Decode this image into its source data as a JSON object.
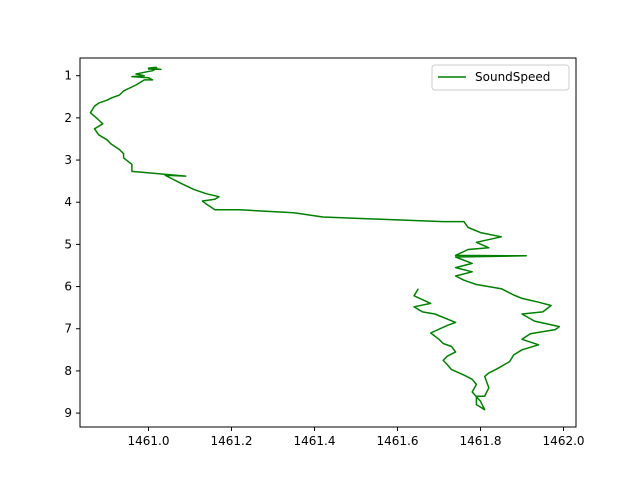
{
  "chart_data": {
    "type": "line",
    "title": "",
    "xlabel": "",
    "ylabel": "",
    "xlim": [
      1460.835,
      1462.03
    ],
    "ylim": [
      9.33,
      0.58
    ],
    "y_inverted": true,
    "xticks": [
      1461.0,
      1461.2,
      1461.4,
      1461.6,
      1461.8,
      1462.0
    ],
    "xtick_labels": [
      "1461.0",
      "1461.2",
      "1461.4",
      "1461.6",
      "1461.8",
      "1462.0"
    ],
    "yticks": [
      1,
      2,
      3,
      4,
      5,
      6,
      7,
      8,
      9
    ],
    "ytick_labels": [
      "1",
      "2",
      "3",
      "4",
      "5",
      "6",
      "7",
      "8",
      "9"
    ],
    "grid": false,
    "legend": {
      "position": "top-right",
      "entries": [
        "SoundSpeed"
      ]
    },
    "series": [
      {
        "name": "SoundSpeed",
        "color": "#008000",
        "points": [
          [
            1461.02,
            0.8
          ],
          [
            1461.0,
            0.82
          ],
          [
            1461.03,
            0.85
          ],
          [
            1461.0,
            0.84
          ],
          [
            1461.02,
            0.82
          ],
          [
            1461.01,
            0.88
          ],
          [
            1460.99,
            0.92
          ],
          [
            1460.97,
            0.96
          ],
          [
            1460.99,
            1.0
          ],
          [
            1460.96,
            1.02
          ],
          [
            1461.0,
            1.05
          ],
          [
            1461.01,
            1.1
          ],
          [
            1460.99,
            1.1
          ],
          [
            1460.97,
            1.22
          ],
          [
            1460.94,
            1.36
          ],
          [
            1460.93,
            1.46
          ],
          [
            1460.91,
            1.53
          ],
          [
            1460.9,
            1.58
          ],
          [
            1460.88,
            1.65
          ],
          [
            1460.87,
            1.72
          ],
          [
            1460.86,
            1.88
          ],
          [
            1460.87,
            1.96
          ],
          [
            1460.88,
            2.05
          ],
          [
            1460.89,
            2.14
          ],
          [
            1460.87,
            2.26
          ],
          [
            1460.88,
            2.4
          ],
          [
            1460.9,
            2.52
          ],
          [
            1460.91,
            2.62
          ],
          [
            1460.93,
            2.75
          ],
          [
            1460.94,
            2.85
          ],
          [
            1460.94,
            2.95
          ],
          [
            1460.96,
            3.1
          ],
          [
            1460.96,
            3.27
          ],
          [
            1461.09,
            3.38
          ],
          [
            1461.04,
            3.36
          ],
          [
            1461.06,
            3.46
          ],
          [
            1461.08,
            3.56
          ],
          [
            1461.11,
            3.7
          ],
          [
            1461.14,
            3.8
          ],
          [
            1461.17,
            3.87
          ],
          [
            1461.16,
            3.93
          ],
          [
            1461.13,
            3.97
          ],
          [
            1461.14,
            4.05
          ],
          [
            1461.16,
            4.18
          ],
          [
            1461.22,
            4.18
          ],
          [
            1461.35,
            4.25
          ],
          [
            1461.42,
            4.35
          ],
          [
            1461.55,
            4.4
          ],
          [
            1461.71,
            4.46
          ],
          [
            1461.76,
            4.46
          ],
          [
            1461.77,
            4.6
          ],
          [
            1461.8,
            4.72
          ],
          [
            1461.85,
            4.82
          ],
          [
            1461.79,
            4.95
          ],
          [
            1461.82,
            5.08
          ],
          [
            1461.77,
            5.12
          ],
          [
            1461.74,
            5.26
          ],
          [
            1461.91,
            5.27
          ],
          [
            1461.74,
            5.3
          ],
          [
            1461.78,
            5.45
          ],
          [
            1461.74,
            5.55
          ],
          [
            1461.78,
            5.65
          ],
          [
            1461.74,
            5.75
          ],
          [
            1461.76,
            5.85
          ],
          [
            1461.79,
            5.95
          ],
          [
            1461.82,
            6.0
          ],
          [
            1461.85,
            6.05
          ],
          [
            1461.88,
            6.2
          ],
          [
            1461.9,
            6.28
          ],
          [
            1461.94,
            6.37
          ],
          [
            1461.97,
            6.45
          ],
          [
            1461.95,
            6.6
          ],
          [
            1461.9,
            6.65
          ],
          [
            1461.93,
            6.82
          ],
          [
            1461.99,
            6.95
          ],
          [
            1461.98,
            7.02
          ],
          [
            1461.92,
            7.12
          ],
          [
            1461.9,
            7.25
          ],
          [
            1461.94,
            7.38
          ],
          [
            1461.9,
            7.5
          ],
          [
            1461.88,
            7.62
          ],
          [
            1461.87,
            7.78
          ],
          [
            1461.84,
            7.95
          ],
          [
            1461.82,
            8.05
          ],
          [
            1461.81,
            8.13
          ],
          [
            1461.82,
            8.4
          ],
          [
            1461.81,
            8.6
          ],
          [
            1461.79,
            8.6
          ],
          [
            1461.79,
            8.8
          ],
          [
            1461.81,
            8.92
          ],
          [
            1461.8,
            8.72
          ],
          [
            1461.78,
            8.5
          ],
          [
            1461.79,
            8.32
          ],
          [
            1461.78,
            8.2
          ],
          [
            1461.76,
            8.1
          ],
          [
            1461.73,
            7.97
          ],
          [
            1461.72,
            7.85
          ],
          [
            1461.71,
            7.75
          ],
          [
            1461.72,
            7.65
          ],
          [
            1461.74,
            7.55
          ],
          [
            1461.73,
            7.42
          ],
          [
            1461.71,
            7.35
          ],
          [
            1461.7,
            7.25
          ],
          [
            1461.68,
            7.1
          ],
          [
            1461.72,
            6.92
          ],
          [
            1461.74,
            6.85
          ],
          [
            1461.69,
            6.65
          ],
          [
            1461.66,
            6.6
          ],
          [
            1461.64,
            6.48
          ],
          [
            1461.68,
            6.4
          ],
          [
            1461.64,
            6.22
          ],
          [
            1461.65,
            6.05
          ]
        ]
      }
    ]
  }
}
